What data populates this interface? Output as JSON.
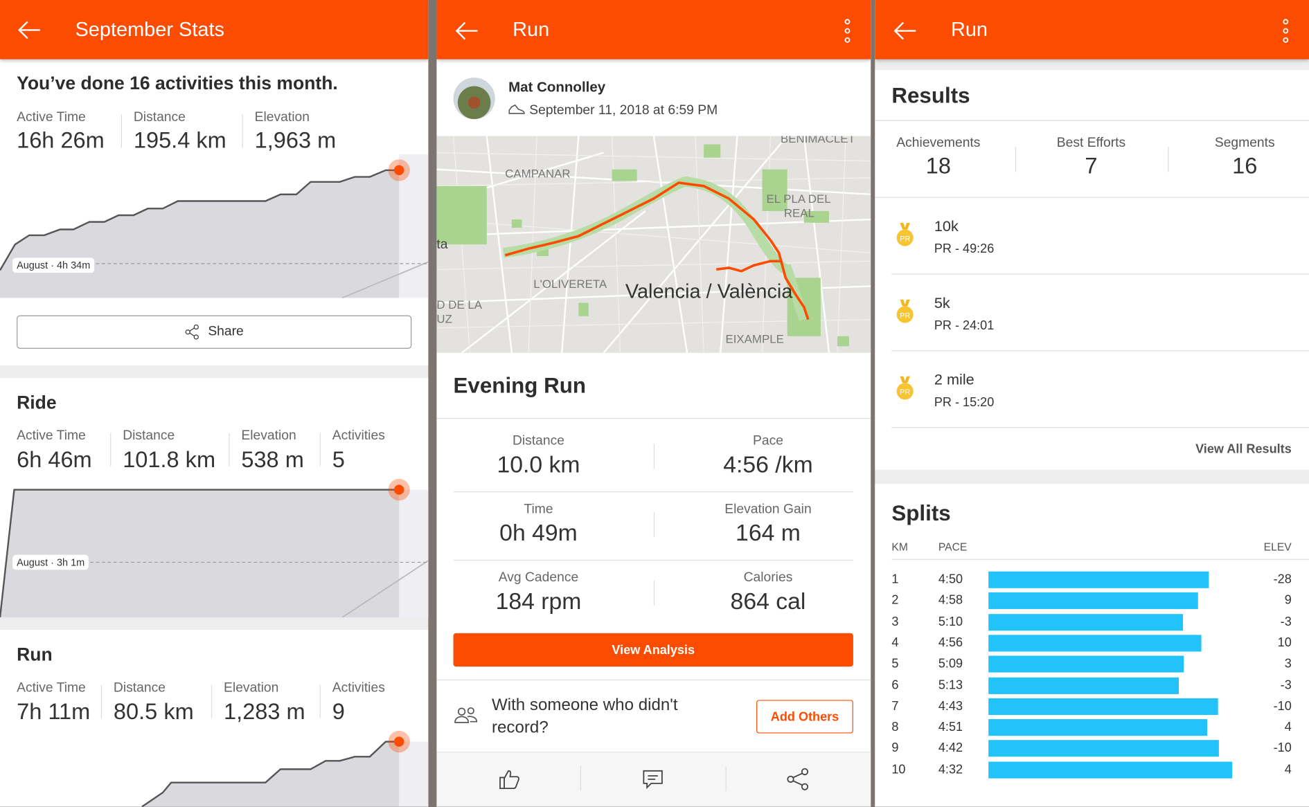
{
  "colors": {
    "accent": "#fc4c02",
    "bar": "#22c2fa"
  },
  "stats_screen": {
    "title": "September Stats",
    "headline": "You’ve done 16 activities this month.",
    "summary": [
      {
        "label": "Active Time",
        "value": "16h 26m"
      },
      {
        "label": "Distance",
        "value": "195.4 km"
      },
      {
        "label": "Elevation",
        "value": "1,963 m"
      }
    ],
    "summary_compare": "August · 4h 34m",
    "share_label": "Share",
    "ride": {
      "title": "Ride",
      "stats": [
        {
          "label": "Active Time",
          "value": "6h 46m"
        },
        {
          "label": "Distance",
          "value": "101.8 km"
        },
        {
          "label": "Elevation",
          "value": "538 m"
        },
        {
          "label": "Activities",
          "value": "5"
        }
      ],
      "compare": "August · 3h 1m"
    },
    "run": {
      "title": "Run",
      "stats": [
        {
          "label": "Active Time",
          "value": "7h 11m"
        },
        {
          "label": "Distance",
          "value": "80.5 km"
        },
        {
          "label": "Elevation",
          "value": "1,283 m"
        },
        {
          "label": "Activities",
          "value": "9"
        }
      ]
    }
  },
  "activity_screen": {
    "title": "Run",
    "athlete": "Mat Connolley",
    "date": "September 11, 2018 at 6:59 PM",
    "map_labels": [
      "CAMPANAR",
      "BENIMACLET",
      "EL PLA DEL",
      "REAL",
      "L'OLIVERETA",
      "Valencia / València",
      "EIXAMPLE",
      "D DE LA",
      "UZ",
      "ta"
    ],
    "activity_name": "Evening Run",
    "stats": [
      {
        "label": "Distance",
        "value": "10.0 km"
      },
      {
        "label": "Pace",
        "value": "4:56 /km"
      },
      {
        "label": "Time",
        "value": "0h 49m"
      },
      {
        "label": "Elevation Gain",
        "value": "164 m"
      },
      {
        "label": "Avg Cadence",
        "value": "184 rpm"
      },
      {
        "label": "Calories",
        "value": "864 cal"
      }
    ],
    "view_analysis": "View Analysis",
    "others_line1": "With someone who didn't",
    "others_line2": "record?",
    "add_others": "Add Others"
  },
  "results_screen": {
    "title": "Run",
    "results_title": "Results",
    "counts": [
      {
        "label": "Achievements",
        "value": "18"
      },
      {
        "label": "Best Efforts",
        "value": "7"
      },
      {
        "label": "Segments",
        "value": "16"
      }
    ],
    "efforts": [
      {
        "name": "10k",
        "pr": "PR - 49:26"
      },
      {
        "name": "5k",
        "pr": "PR - 24:01"
      },
      {
        "name": "2 mile",
        "pr": "PR - 15:20"
      }
    ],
    "medal_text": "PR",
    "view_all": "View All Results",
    "splits_title": "Splits",
    "splits_headers": {
      "km": "KM",
      "pace": "PACE",
      "elev": "ELEV"
    }
  },
  "chart_data": {
    "type": "bar",
    "title": "Splits",
    "xlabel": "PACE",
    "ylabel": "KM",
    "categories": [
      "1",
      "2",
      "3",
      "4",
      "5",
      "6",
      "7",
      "8",
      "9",
      "10"
    ],
    "pace": [
      "4:50",
      "4:58",
      "5:10",
      "4:56",
      "5:09",
      "5:13",
      "4:43",
      "4:51",
      "4:42",
      "4:32"
    ],
    "pace_seconds": [
      290,
      298,
      310,
      296,
      309,
      313,
      283,
      291,
      282,
      272
    ],
    "elev": [
      "-28",
      "9",
      "-3",
      "10",
      "3",
      "-3",
      "-10",
      "4",
      "-10",
      "4"
    ]
  }
}
